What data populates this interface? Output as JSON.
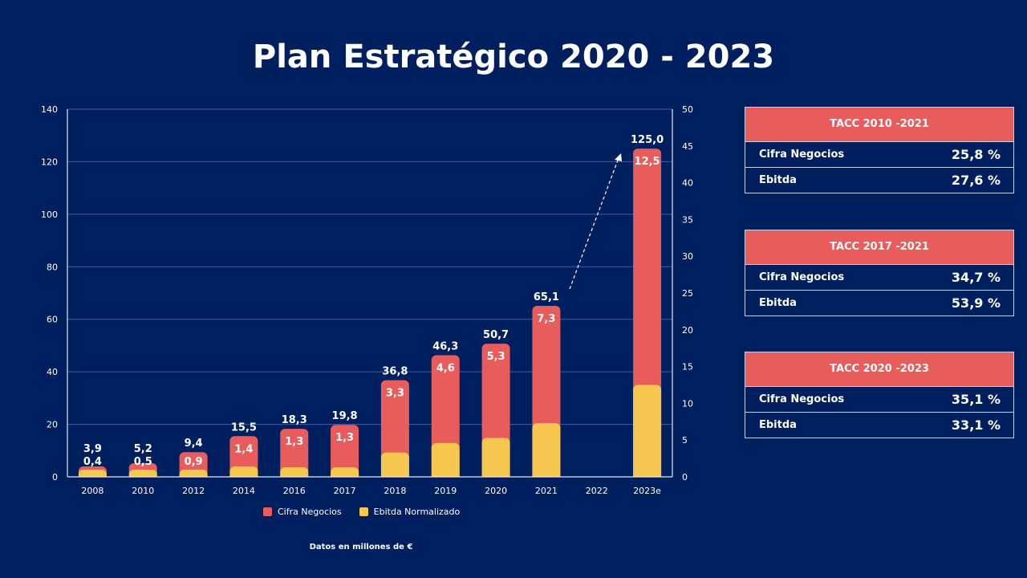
{
  "title": "Plan Estratégico 2020 - 2023",
  "chart_data": {
    "type": "bar",
    "categories": [
      "2008",
      "2010",
      "2012",
      "2014",
      "2016",
      "2017",
      "2018",
      "2019",
      "2020",
      "2021",
      "2022",
      "2023e"
    ],
    "series": [
      {
        "name": "Cifra Negocios",
        "axis": "left",
        "color": "#e85c5c",
        "values": [
          3.9,
          5.2,
          9.4,
          15.5,
          18.3,
          19.8,
          36.8,
          46.3,
          50.7,
          65.1,
          null,
          125.0
        ],
        "labels": [
          "3,9",
          "5,2",
          "9,4",
          "15,5",
          "18,3",
          "19,8",
          "36,8",
          "46,3",
          "50,7",
          "65,1",
          "",
          "125,0"
        ]
      },
      {
        "name": "Ebitda Normalizado",
        "axis": "right",
        "color": "#f5c74f",
        "values": [
          0.4,
          0.5,
          0.9,
          1.4,
          1.3,
          1.3,
          3.3,
          4.6,
          5.3,
          7.3,
          null,
          12.5
        ],
        "labels": [
          "0,4",
          "0,5",
          "0,9",
          "1,4",
          "1,3",
          "1,3",
          "3,3",
          "4,6",
          "5,3",
          "7,3",
          "",
          "12,5"
        ]
      }
    ],
    "y_left": {
      "min": 0,
      "max": 140,
      "ticks": [
        "0",
        "20",
        "40",
        "60",
        "80",
        "100",
        "120",
        "140"
      ]
    },
    "y_right": {
      "min": 0,
      "max": 50,
      "ticks": [
        "0",
        "5",
        "10",
        "15",
        "20",
        "25",
        "30",
        "35",
        "40",
        "45",
        "50"
      ]
    },
    "grid": true,
    "legend_position": "bottom",
    "annotation": "dashed arrow from 2021 to 2023e"
  },
  "note": "Datos en millones de €",
  "panels": [
    {
      "header": "TACC 2010 -2021",
      "rows": [
        {
          "label": "Cifra Negocios",
          "value": "25,8 %"
        },
        {
          "label": "Ebitda",
          "value": "27,6 %"
        }
      ]
    },
    {
      "header": "TACC 2017 -2021",
      "rows": [
        {
          "label": "Cifra Negocios",
          "value": "34,7 %"
        },
        {
          "label": "Ebitda",
          "value": "53,9 %"
        }
      ]
    },
    {
      "header": "TACC 2020 -2023",
      "rows": [
        {
          "label": "Cifra Negocios",
          "value": "35,1 %"
        },
        {
          "label": "Ebitda",
          "value": "33,1 %"
        }
      ]
    }
  ]
}
